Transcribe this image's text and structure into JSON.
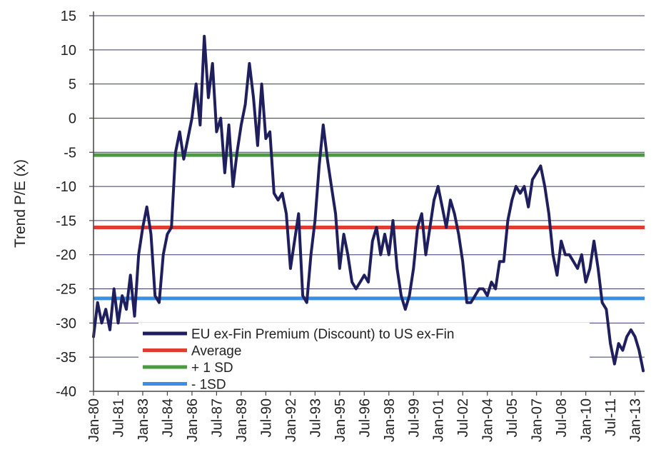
{
  "chart_data": {
    "type": "line",
    "title": "",
    "ylabel": "Trend P/E (x)",
    "xlabel": "",
    "ylim": [
      -40,
      15
    ],
    "yticks": [
      15,
      10,
      5,
      0,
      -5,
      -10,
      -15,
      -20,
      -25,
      -30,
      -35,
      -40
    ],
    "xlim": [
      1980.0,
      2013.583
    ],
    "xtick_labels": [
      "Jan-80",
      "Jul-81",
      "Jan-83",
      "Jul-84",
      "Jan-86",
      "Jul-87",
      "Jan-89",
      "Jul-90",
      "Jan-92",
      "Jul-93",
      "Jan-95",
      "Jul-96",
      "Jan-98",
      "Jul-99",
      "Jan-01",
      "Jul-02",
      "Jan-04",
      "Jul-05",
      "Jan-07",
      "Jul-08",
      "Jan-10",
      "Jul-11",
      "Jan-13"
    ],
    "xtick_values": [
      1980.0,
      1981.5,
      1983.0,
      1984.5,
      1986.0,
      1987.5,
      1989.0,
      1990.5,
      1992.0,
      1993.5,
      1995.0,
      1996.5,
      1998.0,
      1999.5,
      2001.0,
      2002.5,
      2004.0,
      2005.5,
      2007.0,
      2008.5,
      2010.0,
      2011.5,
      2013.0
    ],
    "grid": true,
    "legend_position": "bottom-left",
    "series": [
      {
        "name": "EU ex-Fin  Premium (Discount) to US ex-Fin",
        "color": "#1f1f5e",
        "x": [
          1980.0,
          1980.25,
          1980.5,
          1980.75,
          1981.0,
          1981.25,
          1981.5,
          1981.75,
          1982.0,
          1982.25,
          1982.5,
          1982.75,
          1983.0,
          1983.25,
          1983.5,
          1983.75,
          1984.0,
          1984.25,
          1984.5,
          1984.75,
          1985.0,
          1985.25,
          1985.5,
          1985.75,
          1986.0,
          1986.25,
          1986.5,
          1986.75,
          1987.0,
          1987.25,
          1987.5,
          1987.75,
          1988.0,
          1988.25,
          1988.5,
          1988.75,
          1989.0,
          1989.25,
          1989.5,
          1989.75,
          1990.0,
          1990.25,
          1990.5,
          1990.75,
          1991.0,
          1991.25,
          1991.5,
          1991.75,
          1992.0,
          1992.25,
          1992.5,
          1992.75,
          1993.0,
          1993.25,
          1993.5,
          1993.75,
          1994.0,
          1994.25,
          1994.5,
          1994.75,
          1995.0,
          1995.25,
          1995.5,
          1995.75,
          1996.0,
          1996.25,
          1996.5,
          1996.75,
          1997.0,
          1997.25,
          1997.5,
          1997.75,
          1998.0,
          1998.25,
          1998.5,
          1998.75,
          1999.0,
          1999.25,
          1999.5,
          1999.75,
          2000.0,
          2000.25,
          2000.5,
          2000.75,
          2001.0,
          2001.25,
          2001.5,
          2001.75,
          2002.0,
          2002.25,
          2002.5,
          2002.75,
          2003.0,
          2003.25,
          2003.5,
          2003.75,
          2004.0,
          2004.25,
          2004.5,
          2004.75,
          2005.0,
          2005.25,
          2005.5,
          2005.75,
          2006.0,
          2006.25,
          2006.5,
          2006.75,
          2007.0,
          2007.25,
          2007.5,
          2007.75,
          2008.0,
          2008.25,
          2008.5,
          2008.75,
          2009.0,
          2009.25,
          2009.5,
          2009.75,
          2010.0,
          2010.25,
          2010.5,
          2010.75,
          2011.0,
          2011.25,
          2011.5,
          2011.75,
          2012.0,
          2012.25,
          2012.5,
          2012.75,
          2013.0,
          2013.25,
          2013.5
        ],
        "y": [
          -32,
          -27,
          -30,
          -28,
          -31,
          -25,
          -30,
          -26,
          -28,
          -23,
          -29,
          -20,
          -16,
          -13,
          -17,
          -26,
          -27,
          -20,
          -17,
          -16,
          -5,
          -2,
          -6,
          -3,
          0,
          5,
          -1,
          12,
          3,
          8,
          -2,
          0,
          -8,
          -1,
          -10,
          -5,
          -1,
          2,
          8,
          3,
          -4,
          5,
          -3,
          -2,
          -11,
          -12,
          -11,
          -14,
          -22,
          -18,
          -14,
          -26,
          -27,
          -20,
          -15,
          -7,
          -1,
          -6,
          -10,
          -14,
          -22,
          -17,
          -20,
          -24,
          -25,
          -24,
          -23,
          -24,
          -18,
          -16,
          -20,
          -17,
          -20,
          -15,
          -22,
          -26,
          -28,
          -26,
          -22,
          -16,
          -14,
          -20,
          -16,
          -12,
          -10,
          -13,
          -16,
          -12,
          -14,
          -17,
          -21,
          -27,
          -27,
          -26,
          -25,
          -25,
          -26,
          -24,
          -25,
          -21,
          -21,
          -15,
          -12,
          -10,
          -11,
          -10,
          -13,
          -9,
          -8,
          -7,
          -10,
          -14,
          -20,
          -23,
          -18,
          -20,
          -20,
          -21,
          -22,
          -20,
          -24,
          -22,
          -18,
          -22,
          -27,
          -28,
          -33,
          -36,
          -33,
          -34,
          -32,
          -31,
          -32,
          -34,
          -37
        ],
        "width": 4
      }
    ],
    "reference_lines": [
      {
        "name": "Average",
        "value": -16,
        "color": "#e03c31"
      },
      {
        "name": "+ 1 SD",
        "value": -5.4,
        "color": "#4a9a3f"
      },
      {
        "name": "- 1SD",
        "value": -26.4,
        "color": "#3a8fe0"
      }
    ]
  }
}
